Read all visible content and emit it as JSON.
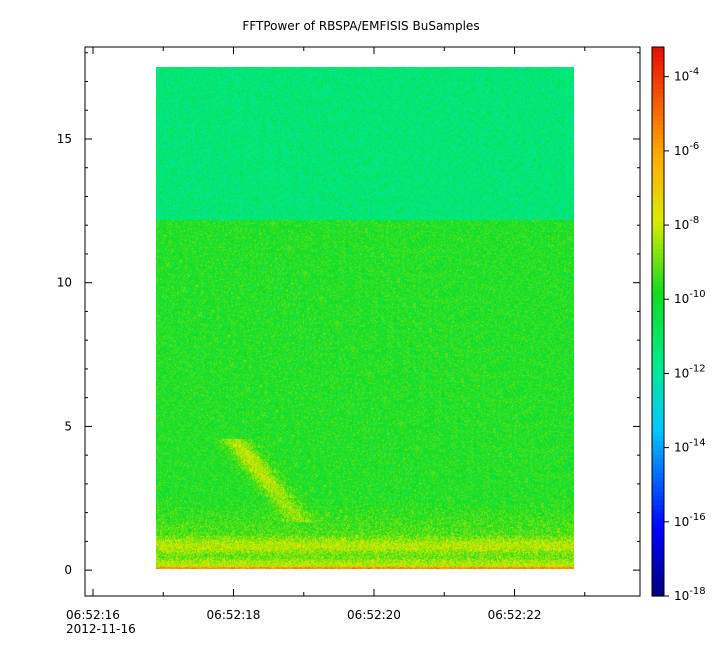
{
  "chart_data": {
    "type": "heatmap",
    "title": "FFTPower of RBSPA/EMFISIS  BuSamples",
    "xlabel": "",
    "ylabel": "",
    "x_axis": {
      "type": "time",
      "range": [
        "06:52:16",
        "06:52:23.9"
      ],
      "ticks": [
        {
          "label": "06:52:16",
          "seconds": 0
        },
        {
          "label": "06:52:18",
          "seconds": 2
        },
        {
          "label": "06:52:20",
          "seconds": 4
        },
        {
          "label": "06:52:22",
          "seconds": 6
        }
      ],
      "minor_ticks_seconds": [
        1,
        3,
        5,
        7
      ],
      "date_label": "2012-11-16"
    },
    "y_axis": {
      "range": [
        -0.9,
        18.2
      ],
      "ticks": [
        0,
        5,
        10,
        15
      ]
    },
    "data_extent": {
      "time_seconds": [
        0.9,
        6.85
      ],
      "y": [
        0.05,
        17.5
      ]
    },
    "colorbar": {
      "scale": "log",
      "range_exponent": [
        -18,
        -3.2
      ],
      "colormap": "rainbow",
      "tick_exponents": [
        -18,
        -16,
        -14,
        -12,
        -10,
        -8,
        -6,
        -4
      ]
    },
    "features": [
      {
        "description_value": "baseline",
        "y_range": [
          0.05,
          0.15
        ],
        "power": 1e-06
      },
      {
        "description_value": "low band",
        "y_range": [
          0.3,
          1.2
        ],
        "power": 1e-08
      },
      {
        "description_value": "background below 12.2",
        "y_range": [
          1.2,
          12.2
        ],
        "power": 1e-10
      },
      {
        "description_value": "background above 12.2",
        "y_range": [
          12.2,
          17.5
        ],
        "power": 1e-12
      },
      {
        "description_value": "burst",
        "time_seconds": [
          2.0,
          3.2
        ],
        "y_range": [
          1.7,
          4.6
        ],
        "power": 1e-08
      }
    ]
  },
  "colors": {
    "background": "#ffffff",
    "axis": "#000000"
  }
}
